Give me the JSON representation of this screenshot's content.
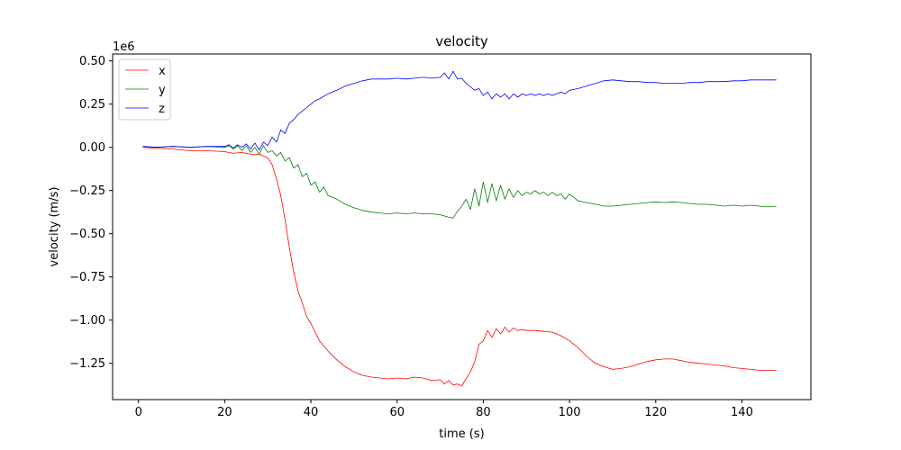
{
  "chart_data": {
    "type": "line",
    "title": "velocity",
    "xlabel": "time (s)",
    "ylabel": "velocity (m/s)",
    "y_offset_label": "1e6",
    "xlim": [
      -6,
      156
    ],
    "ylim": [
      -1.46,
      0.54
    ],
    "y_scale_factor": 1000000,
    "x_ticks": [
      0,
      20,
      40,
      60,
      80,
      100,
      120,
      140
    ],
    "x_tick_labels": [
      "0",
      "20",
      "40",
      "60",
      "80",
      "100",
      "120",
      "140"
    ],
    "y_ticks": [
      0.5,
      0.25,
      0.0,
      -0.25,
      -0.5,
      -0.75,
      -1.0,
      -1.25
    ],
    "y_tick_labels": [
      "0.50",
      "0.25",
      "0.00",
      "−0.25",
      "−0.50",
      "−0.75",
      "−1.00",
      "−1.25"
    ],
    "grid": false,
    "legend": "top-left",
    "series": [
      {
        "name": "x",
        "color": "#ff0000",
        "x": [
          1,
          4,
          8,
          12,
          16,
          20,
          22,
          24,
          26,
          28,
          30,
          31,
          32,
          33,
          34,
          35,
          36,
          37,
          38,
          39,
          40,
          41,
          42,
          44,
          46,
          48,
          50,
          52,
          54,
          56,
          58,
          60,
          62,
          64,
          66,
          68,
          70,
          71,
          72,
          73,
          74,
          75,
          76,
          77,
          78,
          79,
          80,
          81,
          82,
          83,
          84,
          85,
          86,
          87,
          88,
          89,
          90,
          92,
          94,
          96,
          98,
          100,
          102,
          104,
          106,
          108,
          110,
          112,
          114,
          116,
          118,
          120,
          122,
          124,
          126,
          128,
          130,
          132,
          134,
          136,
          138,
          140,
          142,
          144,
          146,
          148
        ],
        "y": [
          0.0,
          -0.005,
          -0.01,
          -0.02,
          -0.02,
          -0.025,
          -0.035,
          -0.03,
          -0.04,
          -0.04,
          -0.06,
          -0.1,
          -0.18,
          -0.28,
          -0.42,
          -0.58,
          -0.72,
          -0.83,
          -0.9,
          -0.98,
          -1.02,
          -1.07,
          -1.12,
          -1.18,
          -1.23,
          -1.27,
          -1.3,
          -1.32,
          -1.33,
          -1.335,
          -1.34,
          -1.335,
          -1.34,
          -1.33,
          -1.335,
          -1.35,
          -1.345,
          -1.37,
          -1.35,
          -1.375,
          -1.37,
          -1.38,
          -1.34,
          -1.3,
          -1.24,
          -1.14,
          -1.12,
          -1.06,
          -1.1,
          -1.05,
          -1.08,
          -1.04,
          -1.07,
          -1.045,
          -1.06,
          -1.055,
          -1.06,
          -1.06,
          -1.065,
          -1.07,
          -1.09,
          -1.12,
          -1.16,
          -1.21,
          -1.25,
          -1.27,
          -1.285,
          -1.28,
          -1.27,
          -1.255,
          -1.24,
          -1.23,
          -1.225,
          -1.225,
          -1.235,
          -1.245,
          -1.25,
          -1.255,
          -1.26,
          -1.265,
          -1.275,
          -1.28,
          -1.285,
          -1.29,
          -1.29,
          -1.29
        ]
      },
      {
        "name": "y",
        "color": "#008000",
        "x": [
          1,
          4,
          8,
          12,
          16,
          20,
          21,
          22,
          23,
          24,
          25,
          26,
          27,
          28,
          29,
          30,
          31,
          32,
          33,
          34,
          35,
          36,
          37,
          38,
          39,
          40,
          41,
          42,
          43,
          44,
          46,
          48,
          50,
          52,
          54,
          56,
          58,
          60,
          62,
          64,
          66,
          68,
          70,
          72,
          73,
          74,
          75,
          76,
          77,
          78,
          79,
          80,
          81,
          82,
          83,
          84,
          85,
          86,
          87,
          88,
          89,
          90,
          91,
          92,
          93,
          94,
          95,
          96,
          97,
          98,
          99,
          100,
          102,
          104,
          106,
          108,
          110,
          112,
          114,
          116,
          118,
          120,
          122,
          124,
          126,
          128,
          130,
          132,
          134,
          136,
          138,
          140,
          142,
          144,
          146,
          148
        ],
        "y": [
          0.005,
          0.0,
          0.005,
          0.0,
          0.005,
          0.0,
          0.01,
          -0.01,
          0.01,
          -0.02,
          0.01,
          -0.03,
          0.0,
          -0.04,
          0.01,
          -0.03,
          -0.02,
          -0.05,
          -0.03,
          -0.08,
          -0.06,
          -0.12,
          -0.1,
          -0.17,
          -0.15,
          -0.22,
          -0.2,
          -0.26,
          -0.23,
          -0.28,
          -0.3,
          -0.33,
          -0.35,
          -0.365,
          -0.375,
          -0.38,
          -0.385,
          -0.38,
          -0.385,
          -0.38,
          -0.385,
          -0.385,
          -0.39,
          -0.405,
          -0.41,
          -0.37,
          -0.34,
          -0.3,
          -0.36,
          -0.24,
          -0.34,
          -0.2,
          -0.32,
          -0.21,
          -0.31,
          -0.22,
          -0.3,
          -0.24,
          -0.29,
          -0.25,
          -0.28,
          -0.26,
          -0.27,
          -0.25,
          -0.27,
          -0.26,
          -0.28,
          -0.26,
          -0.28,
          -0.27,
          -0.3,
          -0.27,
          -0.31,
          -0.32,
          -0.33,
          -0.34,
          -0.34,
          -0.335,
          -0.33,
          -0.325,
          -0.32,
          -0.315,
          -0.32,
          -0.315,
          -0.32,
          -0.325,
          -0.33,
          -0.33,
          -0.335,
          -0.34,
          -0.335,
          -0.34,
          -0.335,
          -0.34,
          -0.345,
          -0.34
        ]
      },
      {
        "name": "z",
        "color": "#0000ff",
        "x": [
          1,
          4,
          8,
          12,
          16,
          20,
          21,
          22,
          23,
          24,
          25,
          26,
          27,
          28,
          29,
          30,
          31,
          32,
          33,
          34,
          35,
          36,
          37,
          38,
          39,
          40,
          41,
          42,
          44,
          46,
          48,
          50,
          52,
          54,
          56,
          58,
          60,
          62,
          64,
          66,
          68,
          70,
          71,
          72,
          73,
          74,
          75,
          76,
          77,
          78,
          79,
          80,
          81,
          82,
          83,
          84,
          85,
          86,
          87,
          88,
          89,
          90,
          91,
          92,
          93,
          94,
          95,
          96,
          97,
          98,
          99,
          100,
          102,
          104,
          106,
          108,
          110,
          112,
          114,
          116,
          118,
          120,
          122,
          124,
          126,
          128,
          130,
          132,
          134,
          136,
          138,
          140,
          142,
          144,
          146,
          148
        ],
        "y": [
          0.005,
          0.0,
          0.005,
          0.0,
          0.005,
          0.005,
          0.015,
          -0.005,
          0.015,
          0.0,
          0.02,
          -0.01,
          0.025,
          -0.015,
          0.03,
          0.01,
          0.06,
          0.03,
          0.1,
          0.08,
          0.14,
          0.16,
          0.19,
          0.21,
          0.23,
          0.25,
          0.27,
          0.28,
          0.31,
          0.33,
          0.355,
          0.37,
          0.385,
          0.395,
          0.395,
          0.395,
          0.4,
          0.395,
          0.4,
          0.405,
          0.4,
          0.405,
          0.43,
          0.395,
          0.44,
          0.395,
          0.4,
          0.37,
          0.35,
          0.33,
          0.34,
          0.3,
          0.32,
          0.28,
          0.31,
          0.29,
          0.31,
          0.28,
          0.31,
          0.29,
          0.31,
          0.3,
          0.31,
          0.3,
          0.31,
          0.3,
          0.31,
          0.3,
          0.31,
          0.32,
          0.31,
          0.33,
          0.34,
          0.355,
          0.37,
          0.385,
          0.39,
          0.385,
          0.38,
          0.38,
          0.375,
          0.375,
          0.37,
          0.37,
          0.37,
          0.375,
          0.375,
          0.38,
          0.38,
          0.38,
          0.385,
          0.385,
          0.39,
          0.39,
          0.39,
          0.39
        ]
      }
    ]
  }
}
